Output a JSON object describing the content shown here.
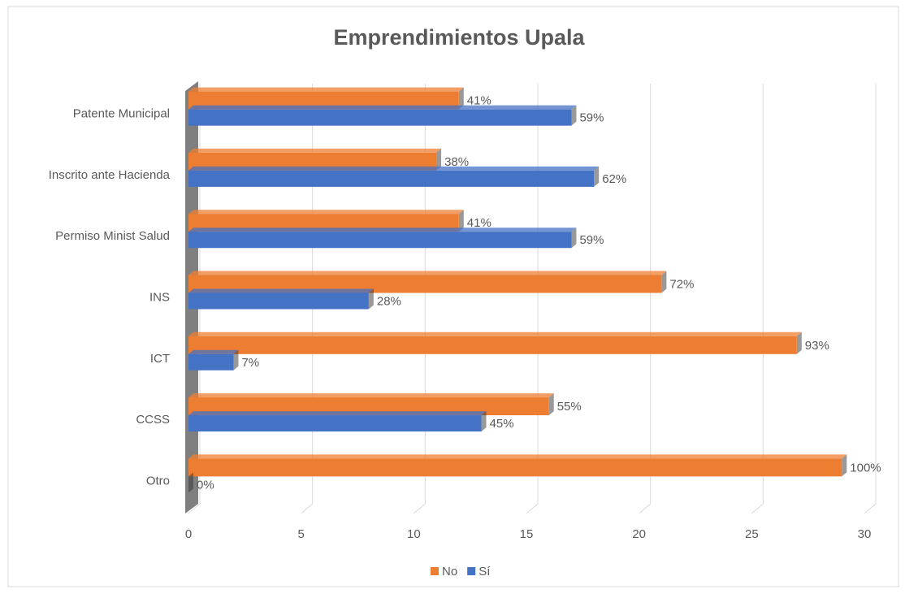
{
  "chart_data": {
    "type": "bar",
    "orientation": "horizontal",
    "title": "Emprendimientos Upala",
    "categories": [
      "Patente Municipal",
      "Inscrito ante Hacienda",
      "Permiso Minist Salud",
      "INS",
      "ICT",
      "CCSS",
      "Otro"
    ],
    "series": [
      {
        "name": "No",
        "color": "#ed7d31",
        "values": [
          12,
          11,
          12,
          21,
          27,
          16,
          29
        ],
        "value_labels": [
          "41%",
          "38%",
          "41%",
          "72%",
          "93%",
          "55%",
          "100%"
        ]
      },
      {
        "name": "Sí",
        "color": "#4472c4",
        "values": [
          17,
          18,
          17,
          8,
          2,
          13,
          0
        ],
        "value_labels": [
          "59%",
          "62%",
          "59%",
          "28%",
          "7%",
          "45%",
          "0%"
        ]
      }
    ],
    "xlim": [
      0,
      30
    ],
    "xticks": [
      0,
      5,
      10,
      15,
      20,
      25,
      30
    ],
    "grid": true,
    "legend": "bottom"
  }
}
